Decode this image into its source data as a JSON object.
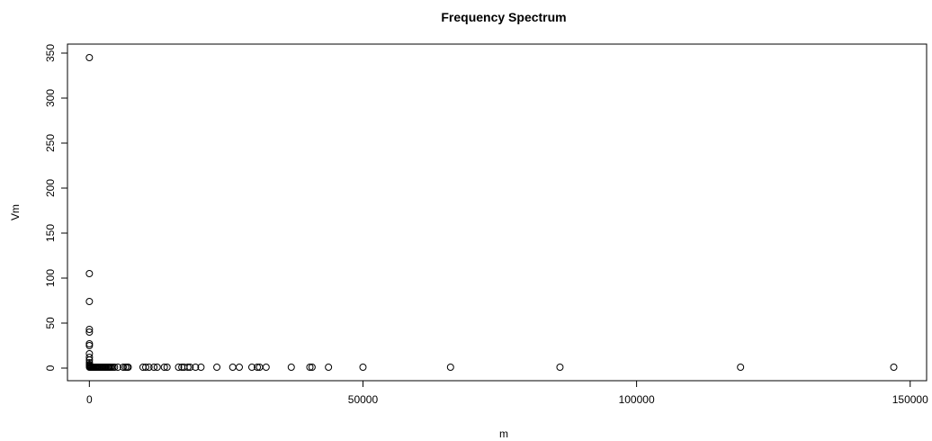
{
  "chart_data": {
    "type": "scatter",
    "title": "Frequency Spectrum",
    "xlabel": "m",
    "ylabel": "Vm",
    "xlim": [
      -4000,
      153000
    ],
    "ylim": [
      -14,
      360
    ],
    "xticks": [
      0,
      50000,
      100000,
      150000
    ],
    "xtick_labels": [
      "0",
      "50000",
      "100000",
      "150000"
    ],
    "yticks": [
      0,
      50,
      100,
      150,
      200,
      250,
      300,
      350
    ],
    "ytick_labels": [
      "0",
      "50",
      "100",
      "150",
      "200",
      "250",
      "300",
      "350"
    ],
    "grid": false,
    "legend": false,
    "marker": "open-circle",
    "points": [
      {
        "x": 1,
        "y": 345
      },
      {
        "x": 2,
        "y": 105
      },
      {
        "x": 3,
        "y": 74
      },
      {
        "x": 4,
        "y": 43
      },
      {
        "x": 5,
        "y": 40
      },
      {
        "x": 6,
        "y": 27
      },
      {
        "x": 7,
        "y": 25
      },
      {
        "x": 8,
        "y": 16
      },
      {
        "x": 9,
        "y": 12
      },
      {
        "x": 10,
        "y": 9
      },
      {
        "x": 11,
        "y": 6
      },
      {
        "x": 13,
        "y": 4
      },
      {
        "x": 15,
        "y": 3
      },
      {
        "x": 18,
        "y": 2
      },
      {
        "x": 20,
        "y": 1
      },
      {
        "x": 150,
        "y": 1
      },
      {
        "x": 300,
        "y": 1
      },
      {
        "x": 450,
        "y": 1
      },
      {
        "x": 600,
        "y": 1
      },
      {
        "x": 750,
        "y": 1
      },
      {
        "x": 900,
        "y": 1
      },
      {
        "x": 1050,
        "y": 1
      },
      {
        "x": 1200,
        "y": 1
      },
      {
        "x": 1400,
        "y": 1
      },
      {
        "x": 1600,
        "y": 1
      },
      {
        "x": 1800,
        "y": 1
      },
      {
        "x": 2000,
        "y": 1
      },
      {
        "x": 2200,
        "y": 1
      },
      {
        "x": 2400,
        "y": 1
      },
      {
        "x": 2600,
        "y": 1
      },
      {
        "x": 2800,
        "y": 1
      },
      {
        "x": 3000,
        "y": 1
      },
      {
        "x": 3200,
        "y": 1
      },
      {
        "x": 3400,
        "y": 1
      },
      {
        "x": 3600,
        "y": 1
      },
      {
        "x": 3800,
        "y": 1
      },
      {
        "x": 4000,
        "y": 1
      },
      {
        "x": 4300,
        "y": 1
      },
      {
        "x": 4600,
        "y": 1
      },
      {
        "x": 5200,
        "y": 1
      },
      {
        "x": 6200,
        "y": 1
      },
      {
        "x": 6600,
        "y": 1
      },
      {
        "x": 6900,
        "y": 1
      },
      {
        "x": 7100,
        "y": 1
      },
      {
        "x": 9800,
        "y": 1
      },
      {
        "x": 10300,
        "y": 1
      },
      {
        "x": 10900,
        "y": 1
      },
      {
        "x": 11800,
        "y": 1
      },
      {
        "x": 12400,
        "y": 1
      },
      {
        "x": 13700,
        "y": 1
      },
      {
        "x": 14200,
        "y": 1
      },
      {
        "x": 16300,
        "y": 1
      },
      {
        "x": 16900,
        "y": 1
      },
      {
        "x": 17300,
        "y": 1
      },
      {
        "x": 18000,
        "y": 1
      },
      {
        "x": 18400,
        "y": 1
      },
      {
        "x": 19400,
        "y": 1
      },
      {
        "x": 20400,
        "y": 1
      },
      {
        "x": 23300,
        "y": 1
      },
      {
        "x": 26200,
        "y": 1
      },
      {
        "x": 27400,
        "y": 1
      },
      {
        "x": 29700,
        "y": 1
      },
      {
        "x": 30700,
        "y": 1
      },
      {
        "x": 31100,
        "y": 1
      },
      {
        "x": 32300,
        "y": 1
      },
      {
        "x": 36900,
        "y": 1
      },
      {
        "x": 40300,
        "y": 1
      },
      {
        "x": 40700,
        "y": 1
      },
      {
        "x": 43700,
        "y": 1
      },
      {
        "x": 50000,
        "y": 1
      },
      {
        "x": 66000,
        "y": 1
      },
      {
        "x": 86000,
        "y": 1
      },
      {
        "x": 119000,
        "y": 1
      },
      {
        "x": 147000,
        "y": 1
      }
    ]
  }
}
